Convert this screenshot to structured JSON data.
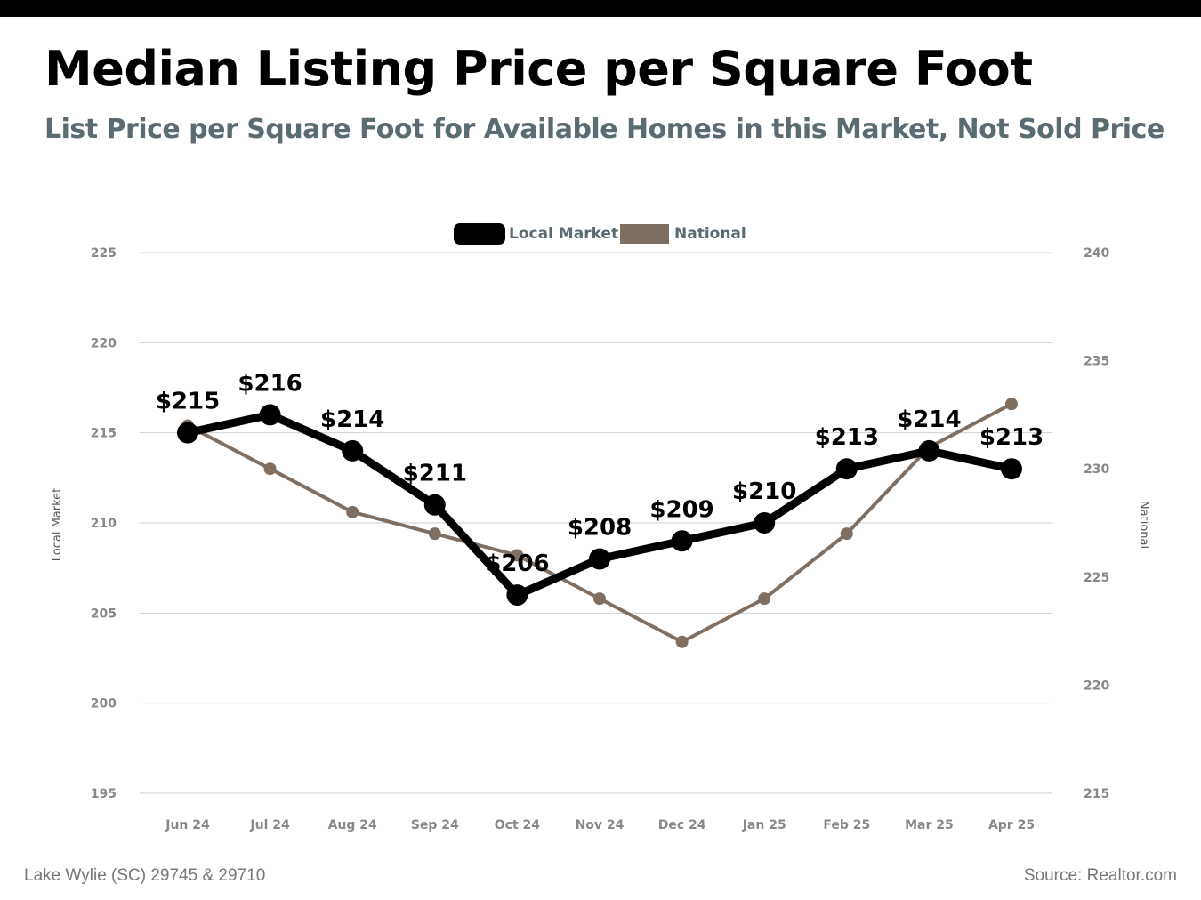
{
  "header": {
    "title": "Median Listing Price per Square Foot",
    "subtitle": "List Price per Square Foot for Available Homes in this Market, Not Sold Price"
  },
  "footer": {
    "location": "Lake Wylie (SC) 29745 & 29710",
    "source": "Source: Realtor.com"
  },
  "chart_data": {
    "type": "line",
    "title": "Median Listing Price per Square Foot",
    "subtitle": "List Price per Square Foot for Available Homes in this Market, Not Sold Price",
    "categories": [
      "Jun 24",
      "Jul 24",
      "Aug 24",
      "Sep 24",
      "Oct 24",
      "Nov 24",
      "Dec 24",
      "Jan 25",
      "Feb 25",
      "Mar 25",
      "Apr 25"
    ],
    "series": [
      {
        "name": "Local Market",
        "axis": "left",
        "color": "#000000",
        "values": [
          215,
          216,
          214,
          211,
          206,
          208,
          209,
          210,
          213,
          214,
          213
        ],
        "data_labels": [
          "$215",
          "$216",
          "$214",
          "$211",
          "$206",
          "$208",
          "$209",
          "$210",
          "$213",
          "$214",
          "$213"
        ]
      },
      {
        "name": "National",
        "axis": "right",
        "color": "#7f6f62",
        "values": [
          232,
          230,
          228,
          227,
          226,
          224,
          222,
          224,
          227,
          231,
          233
        ]
      }
    ],
    "y_left": {
      "label": "Local Market",
      "min": 195,
      "max": 225,
      "step": 5,
      "ticks": [
        "195",
        "200",
        "205",
        "210",
        "215",
        "220",
        "225"
      ]
    },
    "y_right": {
      "label": "National",
      "min": 215,
      "max": 240,
      "step": 5,
      "ticks": [
        "215",
        "220",
        "225",
        "230",
        "235",
        "240"
      ]
    },
    "grid": true,
    "legend_position": "top-center"
  }
}
